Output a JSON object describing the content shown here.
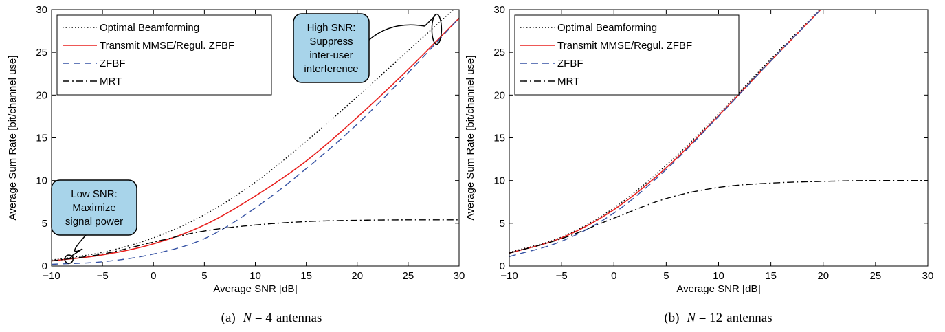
{
  "chart_data": [
    {
      "type": "line",
      "caption": {
        "label": "(a)",
        "var": "N",
        "eq": " = 4",
        "unit": "antennas"
      },
      "xlabel": "Average SNR [dB]",
      "ylabel": "Average Sum Rate [bit/channel use]",
      "xlim": [
        -10,
        30
      ],
      "ylim": [
        0,
        30
      ],
      "xticks": [
        -10,
        -5,
        0,
        5,
        10,
        15,
        20,
        25,
        30
      ],
      "yticks": [
        0,
        5,
        10,
        15,
        20,
        25,
        30
      ],
      "xtick_labels": [
        "−10",
        "−5",
        "0",
        "5",
        "10",
        "15",
        "20",
        "25",
        "30"
      ],
      "ytick_labels": [
        "0",
        "5",
        "10",
        "15",
        "20",
        "25",
        "30"
      ],
      "grid": false,
      "legend_position": "top-left",
      "x": [
        -10,
        -5,
        0,
        5,
        10,
        15,
        20,
        25,
        30
      ],
      "series": [
        {
          "name": "Optimal Beamforming",
          "style": "dotted",
          "color": "#000000",
          "values": [
            0.7,
            1.6,
            3.3,
            6.0,
            9.8,
            14.6,
            19.8,
            25.2,
            30.6
          ]
        },
        {
          "name": "Transmit MMSE/Regul. ZFBF",
          "style": "solid",
          "color": "#e8201e",
          "values": [
            0.6,
            1.3,
            2.6,
            4.8,
            8.2,
            12.3,
            17.4,
            23.0,
            29.0
          ]
        },
        {
          "name": "ZFBF",
          "style": "dashed",
          "color": "#3451a3",
          "values": [
            0.2,
            0.5,
            1.4,
            3.2,
            6.8,
            11.4,
            16.6,
            22.6,
            29.0
          ]
        },
        {
          "name": "MRT",
          "style": "dashdot",
          "color": "#000000",
          "values": [
            0.6,
            1.4,
            2.8,
            4.1,
            4.8,
            5.2,
            5.35,
            5.4,
            5.4
          ]
        }
      ],
      "annotations": [
        {
          "lines": [
            "Low SNR:",
            "Maximize",
            "signal power"
          ],
          "point": [
            -8.3,
            0.8
          ]
        },
        {
          "lines": [
            "High SNR:",
            "Suppress",
            "inter-user",
            "interference"
          ],
          "point": [
            27.8,
            27.7
          ]
        }
      ]
    },
    {
      "type": "line",
      "caption": {
        "label": "(b)",
        "var": "N",
        "eq": " = 12",
        "unit": "antennas"
      },
      "xlabel": "Average SNR [dB]",
      "ylabel": "Average Sum Rate [bit/channel use]",
      "xlim": [
        -10,
        30
      ],
      "ylim": [
        0,
        30
      ],
      "xticks": [
        -10,
        -5,
        0,
        5,
        10,
        15,
        20,
        25,
        30
      ],
      "yticks": [
        0,
        5,
        10,
        15,
        20,
        25,
        30
      ],
      "xtick_labels": [
        "−10",
        "−5",
        "0",
        "5",
        "10",
        "15",
        "20",
        "25",
        "30"
      ],
      "ytick_labels": [
        "0",
        "5",
        "10",
        "15",
        "20",
        "25",
        "30"
      ],
      "grid": false,
      "legend_position": "top-left",
      "x": [
        -10,
        -5,
        0,
        5,
        10,
        15,
        20
      ],
      "series": [
        {
          "name": "Optimal Beamforming",
          "style": "dotted",
          "color": "#000000",
          "values": [
            1.6,
            3.4,
            6.8,
            11.8,
            17.8,
            24.2,
            30.5
          ]
        },
        {
          "name": "Transmit MMSE/Regul. ZFBF",
          "style": "solid",
          "color": "#e8201e",
          "values": [
            1.5,
            3.3,
            6.6,
            11.5,
            17.6,
            24.0,
            30.3
          ]
        },
        {
          "name": "ZFBF",
          "style": "dashed",
          "color": "#3451a3",
          "values": [
            1.1,
            2.9,
            6.2,
            11.3,
            17.5,
            24.0,
            30.3
          ]
        },
        {
          "name": "MRT",
          "style": "dashdot",
          "color": "#000000",
          "values": [
            1.5,
            3.2,
            5.6,
            7.9,
            9.2,
            9.7,
            9.9
          ]
        }
      ],
      "mrt_tail": {
        "x": [
          25,
          30
        ],
        "values": [
          10.0,
          10.0
        ]
      }
    }
  ]
}
